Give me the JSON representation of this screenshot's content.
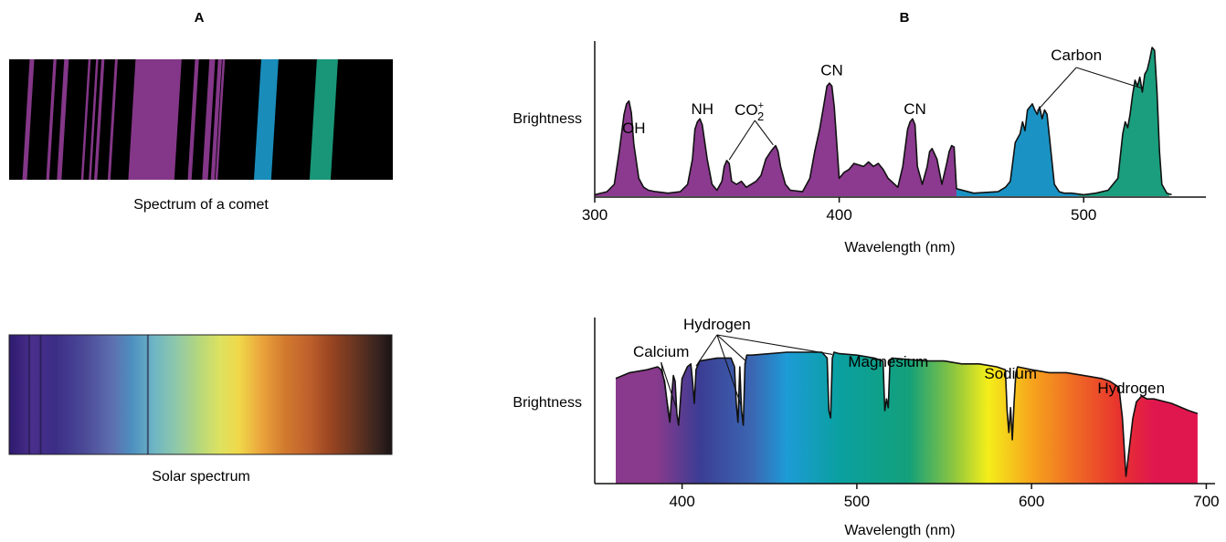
{
  "panels": {
    "left_letter": "A",
    "right_letter": "B"
  },
  "comet_strip": {
    "caption": "Spectrum of a comet",
    "background": "#000000",
    "lines": [
      {
        "pos": 0.05,
        "width": 0.012,
        "color": "#8b3a8f"
      },
      {
        "pos": 0.11,
        "width": 0.008,
        "color": "#8b3a8f"
      },
      {
        "pos": 0.14,
        "width": 0.012,
        "color": "#8b3a8f"
      },
      {
        "pos": 0.2,
        "width": 0.006,
        "color": "#8b3a8f"
      },
      {
        "pos": 0.22,
        "width": 0.006,
        "color": "#8b3a8f"
      },
      {
        "pos": 0.235,
        "width": 0.008,
        "color": "#8b3a8f"
      },
      {
        "pos": 0.27,
        "width": 0.007,
        "color": "#8b3a8f"
      },
      {
        "pos": 0.38,
        "width": 0.12,
        "color": "#8b3a8f"
      },
      {
        "pos": 0.48,
        "width": 0.01,
        "color": "#8b3a8f"
      },
      {
        "pos": 0.52,
        "width": 0.015,
        "color": "#8b3a8f"
      },
      {
        "pos": 0.54,
        "width": 0.01,
        "color": "#8b3a8f"
      },
      {
        "pos": 0.55,
        "width": 0.006,
        "color": "#8b3a8f"
      },
      {
        "pos": 0.67,
        "width": 0.045,
        "color": "#1a93c4"
      },
      {
        "pos": 0.82,
        "width": 0.055,
        "color": "#1a9e7d"
      }
    ]
  },
  "solar_strip": {
    "caption": "Solar spectrum",
    "stops": [
      {
        "pos": 0.0,
        "color": "#2d1a6e"
      },
      {
        "pos": 0.06,
        "color": "#4a2f8c"
      },
      {
        "pos": 0.12,
        "color": "#3b2d86"
      },
      {
        "pos": 0.2,
        "color": "#4c4b98"
      },
      {
        "pos": 0.27,
        "color": "#5e6fb0"
      },
      {
        "pos": 0.32,
        "color": "#4d8fc0"
      },
      {
        "pos": 0.38,
        "color": "#6fb6c4"
      },
      {
        "pos": 0.44,
        "color": "#91c9a8"
      },
      {
        "pos": 0.5,
        "color": "#b8d87a"
      },
      {
        "pos": 0.55,
        "color": "#dde261"
      },
      {
        "pos": 0.6,
        "color": "#f0d84a"
      },
      {
        "pos": 0.66,
        "color": "#eba43c"
      },
      {
        "pos": 0.72,
        "color": "#d27a2e"
      },
      {
        "pos": 0.78,
        "color": "#c0622d"
      },
      {
        "pos": 0.84,
        "color": "#9a4521"
      },
      {
        "pos": 0.9,
        "color": "#6b3621"
      },
      {
        "pos": 0.96,
        "color": "#3a2420"
      },
      {
        "pos": 1.0,
        "color": "#1a1414"
      }
    ],
    "dark_lines": [
      0.05,
      0.08,
      0.36
    ]
  },
  "chart_data": [
    {
      "type": "area",
      "xlabel": "Wavelength (nm)",
      "ylabel": "Brightness",
      "xlim": [
        300,
        550
      ],
      "ylim": [
        0,
        1
      ],
      "xticks": [
        300,
        400,
        500
      ],
      "grid": false,
      "segments": [
        {
          "color": "#8b3a8f",
          "x_range": [
            300,
            448
          ]
        },
        {
          "color": "#1a93c4",
          "x_range": [
            448,
            498
          ]
        },
        {
          "color": "#1a9e7d",
          "x_range": [
            498,
            535
          ]
        }
      ],
      "x": [
        300,
        305,
        308,
        310,
        312,
        313,
        314,
        315,
        316,
        318,
        320,
        322,
        325,
        330,
        335,
        338,
        340,
        341,
        342,
        343,
        344,
        346,
        348,
        350,
        352,
        353,
        354,
        355,
        356,
        358,
        360,
        362,
        364,
        366,
        368,
        370,
        372,
        373,
        374,
        375,
        376,
        378,
        380,
        385,
        388,
        390,
        392,
        394,
        395,
        396,
        397,
        398,
        400,
        402,
        404,
        406,
        408,
        410,
        412,
        414,
        416,
        418,
        420,
        424,
        426,
        428,
        429,
        430,
        431,
        432,
        434,
        436,
        437,
        438,
        440,
        442,
        444,
        445,
        446,
        447,
        448,
        455,
        465,
        468,
        470,
        472,
        474,
        475,
        476,
        477,
        478,
        479,
        480,
        481,
        482,
        483,
        484,
        485,
        486,
        488,
        490,
        492,
        495,
        500,
        505,
        510,
        514,
        516,
        517,
        518,
        519,
        520,
        521,
        522,
        523,
        524,
        525,
        526,
        527,
        528,
        529,
        530,
        531,
        532,
        534,
        536
      ],
      "y": [
        0.01,
        0.03,
        0.08,
        0.3,
        0.55,
        0.62,
        0.64,
        0.56,
        0.35,
        0.12,
        0.06,
        0.04,
        0.03,
        0.02,
        0.03,
        0.08,
        0.25,
        0.45,
        0.5,
        0.52,
        0.48,
        0.25,
        0.08,
        0.04,
        0.1,
        0.2,
        0.24,
        0.22,
        0.1,
        0.08,
        0.1,
        0.06,
        0.08,
        0.1,
        0.14,
        0.25,
        0.3,
        0.32,
        0.34,
        0.3,
        0.2,
        0.08,
        0.04,
        0.03,
        0.12,
        0.3,
        0.45,
        0.64,
        0.74,
        0.76,
        0.74,
        0.6,
        0.12,
        0.16,
        0.18,
        0.22,
        0.21,
        0.2,
        0.23,
        0.2,
        0.22,
        0.18,
        0.12,
        0.06,
        0.2,
        0.45,
        0.5,
        0.52,
        0.48,
        0.2,
        0.08,
        0.2,
        0.3,
        0.32,
        0.25,
        0.08,
        0.22,
        0.3,
        0.34,
        0.33,
        0.05,
        0.02,
        0.03,
        0.06,
        0.1,
        0.36,
        0.42,
        0.5,
        0.44,
        0.58,
        0.6,
        0.62,
        0.58,
        0.55,
        0.6,
        0.52,
        0.58,
        0.55,
        0.4,
        0.08,
        0.03,
        0.02,
        0.02,
        0.01,
        0.02,
        0.04,
        0.12,
        0.42,
        0.5,
        0.46,
        0.55,
        0.68,
        0.78,
        0.74,
        0.8,
        0.7,
        0.82,
        0.85,
        0.92,
        1.0,
        0.98,
        0.7,
        0.3,
        0.08,
        0.02,
        0.01
      ],
      "annotations": [
        {
          "text": "OH",
          "x": 316
        },
        {
          "text": "NH",
          "x": 344
        },
        {
          "text": "CO",
          "sub": "2",
          "sup": "+",
          "x": 367,
          "targets": [
            355,
            373
          ]
        },
        {
          "text": "CN",
          "x": 397
        },
        {
          "text": "CN",
          "x": 431
        },
        {
          "text": "Carbon",
          "x": 497,
          "targets": [
            481,
            524
          ]
        }
      ]
    },
    {
      "type": "area",
      "xlabel": "Wavelength (nm)",
      "ylabel": "Brightness",
      "xlim": [
        350,
        705
      ],
      "ylim": [
        0,
        1
      ],
      "xticks": [
        400,
        500,
        600,
        700
      ],
      "grid": false,
      "fill_stops": [
        {
          "x": 362,
          "color": "#8a3a8c"
        },
        {
          "x": 385,
          "color": "#8a3a8c"
        },
        {
          "x": 410,
          "color": "#3b3d94"
        },
        {
          "x": 440,
          "color": "#3b66b2"
        },
        {
          "x": 460,
          "color": "#1d9bd6"
        },
        {
          "x": 490,
          "color": "#0aa0a0"
        },
        {
          "x": 530,
          "color": "#13a07a"
        },
        {
          "x": 555,
          "color": "#8bc540"
        },
        {
          "x": 575,
          "color": "#f4ee1a"
        },
        {
          "x": 600,
          "color": "#f6a51d"
        },
        {
          "x": 625,
          "color": "#ef6a25"
        },
        {
          "x": 650,
          "color": "#e8332e"
        },
        {
          "x": 670,
          "color": "#e0174e"
        },
        {
          "x": 695,
          "color": "#e0174e"
        }
      ],
      "x": [
        362,
        370,
        380,
        386,
        388,
        390,
        392,
        393,
        394,
        395,
        396,
        397,
        398,
        400,
        403,
        405,
        406,
        407,
        408,
        410,
        420,
        428,
        430,
        431,
        432,
        433,
        434,
        435,
        436,
        437,
        440,
        460,
        480,
        483,
        484,
        485,
        486,
        487,
        490,
        500,
        510,
        515,
        516,
        517,
        518,
        519,
        520,
        530,
        540,
        550,
        560,
        570,
        580,
        585,
        586,
        587,
        588,
        589,
        590,
        591,
        592,
        600,
        610,
        620,
        630,
        640,
        645,
        650,
        652,
        654,
        656,
        658,
        660,
        663,
        666,
        670,
        680,
        690,
        695
      ],
      "y": [
        0.72,
        0.76,
        0.78,
        0.8,
        0.78,
        0.7,
        0.5,
        0.42,
        0.6,
        0.74,
        0.7,
        0.48,
        0.4,
        0.72,
        0.8,
        0.82,
        0.7,
        0.55,
        0.78,
        0.84,
        0.86,
        0.86,
        0.8,
        0.55,
        0.42,
        0.8,
        0.5,
        0.4,
        0.82,
        0.88,
        0.88,
        0.9,
        0.9,
        0.86,
        0.5,
        0.45,
        0.86,
        0.9,
        0.89,
        0.88,
        0.86,
        0.84,
        0.5,
        0.58,
        0.52,
        0.84,
        0.86,
        0.85,
        0.84,
        0.84,
        0.82,
        0.82,
        0.8,
        0.78,
        0.5,
        0.35,
        0.52,
        0.3,
        0.55,
        0.76,
        0.8,
        0.78,
        0.76,
        0.76,
        0.74,
        0.72,
        0.7,
        0.66,
        0.45,
        0.05,
        0.25,
        0.45,
        0.56,
        0.6,
        0.58,
        0.58,
        0.55,
        0.5,
        0.48
      ],
      "annotations": [
        {
          "text": "Calcium",
          "x": 388,
          "targets": [
            393,
            397
          ]
        },
        {
          "text": "Hydrogen",
          "x": 420,
          "targets": [
            408,
            434,
            436,
            486
          ]
        },
        {
          "text": "Magnesium",
          "x": 518
        },
        {
          "text": "Sodium",
          "x": 588
        },
        {
          "text": "Hydrogen",
          "x": 657
        }
      ]
    }
  ]
}
